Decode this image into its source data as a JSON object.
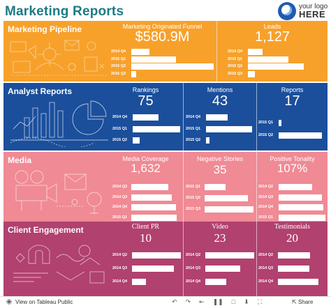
{
  "header": {
    "title": "Marketing Reports",
    "logo_line1": "your logo",
    "logo_line2": "HERE"
  },
  "colors": {
    "pipeline": "#f7a12b",
    "analyst": "#1b4f9c",
    "media": "#f08a94",
    "client": "#b1416f",
    "title": "#1e7a86"
  },
  "sections": {
    "pipeline": {
      "label": "Marketing Pipeline",
      "kpis": [
        {
          "label": "Marketing Originated Funnel",
          "value": "$580.9M",
          "bars": [
            {
              "label": "2014 Q4",
              "value": 0.22
            },
            {
              "label": "2015 Q1",
              "value": 0.54
            },
            {
              "label": "2015 Q2",
              "value": 1.0
            },
            {
              "label": "2015 Q3",
              "value": 0.06
            }
          ]
        },
        {
          "label": "Leads",
          "value": "1,127",
          "bars": [
            {
              "label": "2014 Q4",
              "value": 0.26
            },
            {
              "label": "2015 Q1",
              "value": 0.72
            },
            {
              "label": "2015 Q2",
              "value": 1.0
            },
            {
              "label": "2015 Q3",
              "value": 0.12
            }
          ]
        }
      ]
    },
    "analyst": {
      "label": "Analyst Reports",
      "kpis": [
        {
          "label": "Rankings",
          "value": "75",
          "bars": [
            {
              "label": "2014 Q4",
              "value": 0.55
            },
            {
              "label": "2015 Q1",
              "value": 1.0
            },
            {
              "label": "2015 Q2",
              "value": 0.14
            }
          ]
        },
        {
          "label": "Mentions",
          "value": "43",
          "bars": [
            {
              "label": "2014 Q4",
              "value": 0.47
            },
            {
              "label": "2015 Q1",
              "value": 1.0
            },
            {
              "label": "2015 Q2",
              "value": 0.08
            }
          ]
        },
        {
          "label": "Reports",
          "value": "17",
          "bars": [
            {
              "label": "2015 Q1",
              "value": 0.06
            },
            {
              "label": "2015 Q2",
              "value": 1.0
            }
          ]
        }
      ]
    },
    "media": {
      "label": "Media",
      "kpis": [
        {
          "label": "Media Coverage",
          "value": "1,632",
          "bars": [
            {
              "label": "2014 Q2",
              "value": 0.82
            },
            {
              "label": "2014 Q3",
              "value": 0.89
            },
            {
              "label": "2014 Q4",
              "value": 0.98
            },
            {
              "label": "2015 Q1",
              "value": 1.0
            }
          ]
        },
        {
          "label": "Negative Stories",
          "value": "35",
          "bars": [
            {
              "label": "2015 Q1",
              "value": 0.43
            },
            {
              "label": "2015 Q2",
              "value": 0.88
            },
            {
              "label": "2015 Q3",
              "value": 1.0
            }
          ]
        },
        {
          "label": "Positive Tonality",
          "value": "107%",
          "bars": [
            {
              "label": "2014 Q2",
              "value": 0.72
            },
            {
              "label": "2014 Q3",
              "value": 0.92
            },
            {
              "label": "2014 Q4",
              "value": 0.96
            },
            {
              "label": "2015 Q1",
              "value": 1.0
            }
          ]
        }
      ]
    },
    "client": {
      "label": "Client Engagement",
      "kpis": [
        {
          "label": "Client PR",
          "value": "10",
          "bars": [
            {
              "label": "2014 Q2",
              "value": 1.0
            },
            {
              "label": "2014 Q3",
              "value": 0.86
            },
            {
              "label": "2014 Q4",
              "value": 0.28
            }
          ]
        },
        {
          "label": "Video",
          "value": "23",
          "bars": [
            {
              "label": "2014 Q2",
              "value": 1.0
            },
            {
              "label": "2014 Q3",
              "value": 0.71
            },
            {
              "label": "2014 Q4",
              "value": 0.43
            }
          ]
        },
        {
          "label": "Testimonials",
          "value": "20",
          "bars": [
            {
              "label": "2014 Q2",
              "value": 0.8
            },
            {
              "label": "2014 Q3",
              "value": 0.78
            },
            {
              "label": "2014 Q4",
              "value": 1.0
            }
          ]
        }
      ]
    }
  },
  "footer": {
    "view_label": "View on Tableau Public",
    "share_label": "Share",
    "icons": [
      "undo-icon",
      "redo-icon",
      "revert-icon",
      "pause-icon",
      "comment-icon",
      "download-icon",
      "fullscreen-icon"
    ]
  }
}
